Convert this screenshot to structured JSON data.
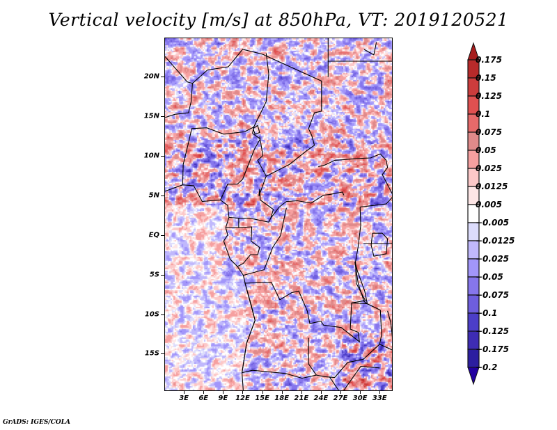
{
  "title": "Vertical velocity [m/s] at 850hPa, VT: 2019120521",
  "credit": "GrADS: IGES/COLA",
  "chart_data": {
    "type": "heatmap",
    "title": "Vertical velocity [m/s] at 850hPa, VT: 2019120521",
    "variable": "Vertical velocity",
    "units": "m/s",
    "level": "850hPa",
    "valid_time": "2019120521",
    "projection": "lat-lon",
    "lon_range": [
      0,
      35
    ],
    "lat_range": [
      -19.7,
      24.9
    ],
    "x_ticks": [
      {
        "value": 3,
        "label": "3E"
      },
      {
        "value": 6,
        "label": "6E"
      },
      {
        "value": 9,
        "label": "9E"
      },
      {
        "value": 12,
        "label": "12E"
      },
      {
        "value": 15,
        "label": "15E"
      },
      {
        "value": 18,
        "label": "18E"
      },
      {
        "value": 21,
        "label": "21E"
      },
      {
        "value": 24,
        "label": "24E"
      },
      {
        "value": 27,
        "label": "27E"
      },
      {
        "value": 30,
        "label": "30E"
      },
      {
        "value": 33,
        "label": "33E"
      }
    ],
    "y_ticks": [
      {
        "value": 20,
        "label": "20N"
      },
      {
        "value": 15,
        "label": "15N"
      },
      {
        "value": 10,
        "label": "10N"
      },
      {
        "value": 5,
        "label": "5N"
      },
      {
        "value": 0,
        "label": "EQ"
      },
      {
        "value": -5,
        "label": "5S"
      },
      {
        "value": -10,
        "label": "10S"
      },
      {
        "value": -15,
        "label": "15S"
      }
    ],
    "colorbar": {
      "orientation": "vertical",
      "placement": "right",
      "extend": "both",
      "levels": [
        0.175,
        0.15,
        0.125,
        0.1,
        0.075,
        0.05,
        0.025,
        0.0125,
        0.005,
        -0.005,
        -0.0125,
        -0.025,
        -0.05,
        -0.075,
        -0.1,
        -0.125,
        -0.175,
        -0.2
      ],
      "labels": [
        "0.175",
        "0.15",
        "0.125",
        "0.1",
        "0.075",
        "0.05",
        "0.025",
        "0.0125",
        "0.005",
        "−0.005",
        "−0.0125",
        "−0.025",
        "−0.05",
        "−0.075",
        "−0.1",
        "−0.125",
        "−0.175",
        "−0.2"
      ],
      "colors": [
        "#a61c1c",
        "#b82a2a",
        "#cc3c3c",
        "#e05050",
        "#e66a6a",
        "#e08a8a",
        "#f6a0a0",
        "#fcc8c8",
        "#fde6e6",
        "#ffffff",
        "#dcdcfc",
        "#c0b8fc",
        "#a296fa",
        "#8676ec",
        "#6e5ede",
        "#4c3ec8",
        "#3e2cb4",
        "#2c1ea0",
        "#2200a0"
      ]
    },
    "field_summary": "Mesoscale noisy pattern of alternating ascent (red) and descent (blue); strongest bands over Sahel (5N-12N) and southeastern Africa; weak values over Atlantic Ocean."
  }
}
